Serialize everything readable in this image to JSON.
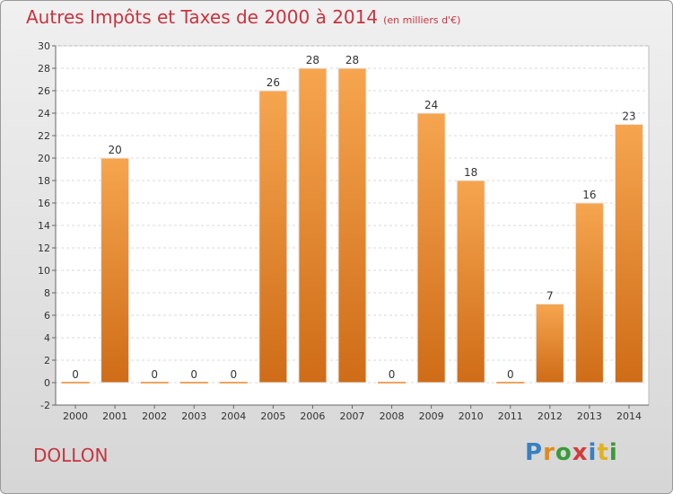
{
  "title": "Autres Impôts et Taxes de 2000 à 2014",
  "subtitle": "(en milliers d'€)",
  "city": "DOLLON",
  "logo": {
    "text": "Proxiti",
    "letters": [
      {
        "ch": "P",
        "color": "#3a7fc1"
      },
      {
        "ch": "r",
        "color": "#e08a1e"
      },
      {
        "ch": "o",
        "color": "#3a9a3a"
      },
      {
        "ch": "x",
        "color": "#d23b3b"
      },
      {
        "ch": "i",
        "color": "#3a7fc1"
      },
      {
        "ch": "t",
        "color": "#e0b21e"
      },
      {
        "ch": "i",
        "color": "#3a9a3a"
      }
    ]
  },
  "colors": {
    "bar_top": "#f6a54f",
    "bar_bottom": "#cf6c17",
    "zero_line": "#e8862c",
    "text": "#c8343f"
  },
  "chart_data": {
    "type": "bar",
    "title": "Autres Impôts et Taxes de 2000 à 2014",
    "subtitle": "(en milliers d'€)",
    "categories": [
      "2000",
      "2001",
      "2002",
      "2003",
      "2004",
      "2005",
      "2006",
      "2007",
      "2008",
      "2009",
      "2010",
      "2011",
      "2012",
      "2013",
      "2014"
    ],
    "values": [
      0,
      20,
      0,
      0,
      0,
      26,
      28,
      28,
      0,
      24,
      18,
      0,
      7,
      16,
      23
    ],
    "ylim": [
      -2,
      30
    ],
    "yticks": [
      -2,
      0,
      2,
      4,
      6,
      8,
      10,
      12,
      14,
      16,
      18,
      20,
      22,
      24,
      26,
      28,
      30
    ],
    "grid": true,
    "xlabel": "",
    "ylabel": ""
  }
}
